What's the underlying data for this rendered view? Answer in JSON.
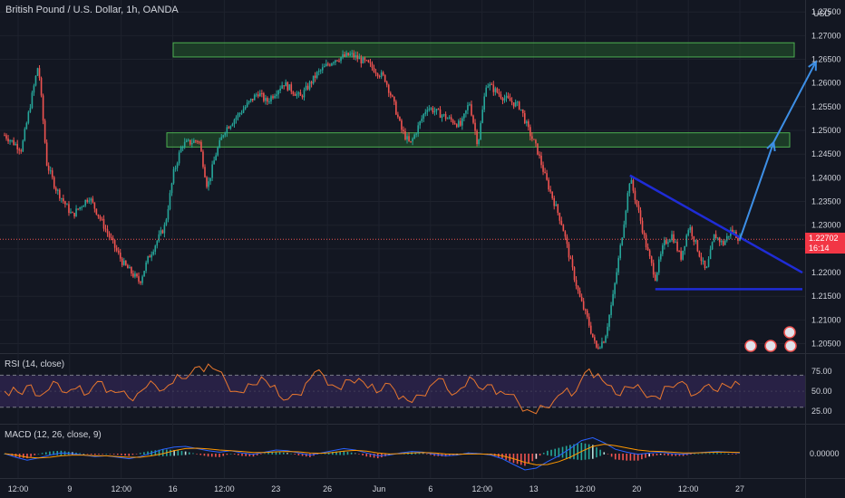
{
  "header": {
    "title": "British Pound / U.S. Dollar, 1h, OANDA",
    "currency": "USD"
  },
  "price_label": {
    "price": "1.22702",
    "countdown": "16:14"
  },
  "colors": {
    "background": "#131722",
    "up": "#26a69a",
    "down": "#ef5350",
    "zone_fill": "#2e7d32",
    "zone_border": "#4caf50",
    "trendline": "#1f2cd6",
    "arrow": "#3d8fe6",
    "rsi_line": "#e8772e",
    "rsi_band": "#3b2a63",
    "macd_line": "#2962ff",
    "signal_line": "#ff9800"
  },
  "chart_data": [
    {
      "type": "candlestick",
      "title": "British Pound / U.S. Dollar, 1h, OANDA",
      "ylim": [
        1.203,
        1.276
      ],
      "y_ticks": [
        "1.27500",
        "1.27000",
        "1.26500",
        "1.26000",
        "1.25500",
        "1.25000",
        "1.24500",
        "1.24000",
        "1.23500",
        "1.23000",
        "1.22500",
        "1.22000",
        "1.21500",
        "1.21000",
        "1.20500"
      ],
      "x_ticks": [
        "12:00",
        "9",
        "12:00",
        "16",
        "12:00",
        "23",
        "26",
        "Jun",
        "6",
        "12:00",
        "13",
        "12:00",
        "20",
        "12:00",
        "27"
      ],
      "last_price": 1.22702,
      "price_path": [
        [
          0,
          1.249
        ],
        [
          2,
          1.246
        ],
        [
          4,
          1.264
        ],
        [
          5,
          1.243
        ],
        [
          6,
          1.238
        ],
        [
          8,
          1.232
        ],
        [
          10,
          1.236
        ],
        [
          12,
          1.229
        ],
        [
          14,
          1.222
        ],
        [
          16,
          1.218
        ],
        [
          17,
          1.223
        ],
        [
          19,
          1.23
        ],
        [
          20,
          1.241
        ],
        [
          21,
          1.247
        ],
        [
          23,
          1.248
        ],
        [
          24,
          1.238
        ],
        [
          25,
          1.245
        ],
        [
          26,
          1.25
        ],
        [
          28,
          1.254
        ],
        [
          30,
          1.258
        ],
        [
          31,
          1.256
        ],
        [
          33,
          1.26
        ],
        [
          35,
          1.257
        ],
        [
          37,
          1.262
        ],
        [
          39,
          1.265
        ],
        [
          41,
          1.266
        ],
        [
          43,
          1.264
        ],
        [
          45,
          1.261
        ],
        [
          46,
          1.256
        ],
        [
          47,
          1.25
        ],
        [
          48,
          1.247
        ],
        [
          50,
          1.255
        ],
        [
          52,
          1.253
        ],
        [
          54,
          1.251
        ],
        [
          55,
          1.256
        ],
        [
          56,
          1.247
        ],
        [
          57,
          1.26
        ],
        [
          59,
          1.257
        ],
        [
          61,
          1.255
        ],
        [
          62,
          1.25
        ],
        [
          63,
          1.246
        ],
        [
          64,
          1.24
        ],
        [
          66,
          1.23
        ],
        [
          67,
          1.222
        ],
        [
          68,
          1.215
        ],
        [
          69,
          1.21
        ],
        [
          70,
          1.204
        ],
        [
          71,
          1.206
        ],
        [
          72,
          1.215
        ],
        [
          73,
          1.227
        ],
        [
          74,
          1.24
        ],
        [
          75,
          1.233
        ],
        [
          76,
          1.225
        ],
        [
          77,
          1.219
        ],
        [
          78,
          1.226
        ],
        [
          79,
          1.228
        ],
        [
          80,
          1.223
        ],
        [
          81,
          1.23
        ],
        [
          82,
          1.225
        ],
        [
          83,
          1.22
        ],
        [
          84,
          1.228
        ],
        [
          85,
          1.226
        ],
        [
          86,
          1.229
        ],
        [
          87,
          1.22702
        ]
      ],
      "zones": [
        {
          "from": 1.2655,
          "to": 1.2685
        },
        {
          "from": 1.2465,
          "to": 1.2495
        }
      ],
      "trendlines": [
        {
          "from": [
            74,
            1.2405
          ],
          "to": [
            100,
            1.22
          ]
        },
        {
          "from": [
            77,
            1.2165
          ],
          "to": [
            100,
            1.2165
          ]
        }
      ],
      "projection": [
        [
          87,
          1.22702
        ],
        [
          91,
          1.2475
        ],
        [
          96,
          1.2645
        ]
      ]
    },
    {
      "type": "line",
      "title": "RSI (14, close)",
      "ylim": [
        15,
        92
      ],
      "y_ticks": [
        "75.00",
        "50.00",
        "25.00"
      ],
      "bands": [
        30,
        70
      ],
      "values": [
        50,
        55,
        46,
        58,
        44,
        52,
        60,
        48,
        53,
        45,
        56,
        62,
        51,
        49,
        42,
        47,
        55,
        58,
        52,
        60,
        66,
        72,
        81,
        84,
        76,
        62,
        50,
        48,
        58,
        68,
        55,
        44,
        40,
        46,
        60,
        74,
        70,
        58,
        52,
        64,
        66,
        54,
        48,
        60,
        52,
        44,
        36,
        45,
        56,
        66,
        52,
        48,
        56,
        64,
        52,
        58,
        50,
        46,
        36,
        27,
        22,
        30,
        38,
        48,
        44,
        62,
        78,
        72,
        58,
        46,
        56,
        54,
        50,
        44,
        40,
        56,
        60,
        58,
        46,
        56,
        52,
        60,
        54,
        58
      ]
    },
    {
      "type": "line",
      "title": "MACD (12, 26, close, 9)",
      "y_ticks": [
        "0.00000"
      ],
      "macd": [
        0.0,
        -0.001,
        -0.0018,
        -0.0012,
        -0.0004,
        0.0002,
        0.0,
        -0.0004,
        -0.0008,
        -0.0006,
        -0.001,
        -0.0014,
        -0.0008,
        0.0002,
        0.0012,
        0.0018,
        0.002,
        0.0014,
        0.0008,
        0.0004,
        0.0008,
        0.0002,
        -0.0002,
        0.0004,
        0.001,
        0.0008,
        0.0002,
        -0.0004,
        0.0002,
        0.0008,
        0.0014,
        0.001,
        0.0002,
        -0.0006,
        -0.0004,
        0.0002,
        0.0006,
        0.0004,
        -0.0002,
        -0.0006,
        -0.0004,
        0.0002,
        0.0,
        -0.0004,
        -0.0014,
        -0.003,
        -0.0045,
        -0.004,
        -0.0022,
        -0.0006,
        0.0014,
        0.0036,
        0.0044,
        0.003,
        0.0012,
        0.0004,
        -0.0002,
        0.0002,
        0.0004,
        0.0,
        -0.0002,
        0.0002,
        0.0004,
        0.0006,
        0.0004,
        0.0002
      ],
      "signal": [
        0.0,
        -0.0004,
        -0.001,
        -0.0012,
        -0.001,
        -0.0006,
        -0.0004,
        -0.0004,
        -0.0006,
        -0.0006,
        -0.0008,
        -0.001,
        -0.001,
        -0.0006,
        0.0,
        0.0008,
        0.0014,
        0.0015,
        0.0013,
        0.001,
        0.0008,
        0.0006,
        0.0003,
        0.0003,
        0.0005,
        0.0006,
        0.0005,
        0.0002,
        0.0001,
        0.0003,
        0.0007,
        0.0009,
        0.0007,
        0.0002,
        -0.0001,
        0.0,
        0.0002,
        0.0003,
        0.0002,
        -0.0001,
        -0.0002,
        -0.0001,
        -0.0001,
        -0.0002,
        -0.0006,
        -0.0014,
        -0.0024,
        -0.0031,
        -0.003,
        -0.0022,
        -0.001,
        0.0006,
        0.002,
        0.0026,
        0.0022,
        0.0016,
        0.001,
        0.0007,
        0.0006,
        0.0004,
        0.0002,
        0.0002,
        0.0003,
        0.0004,
        0.0004,
        0.0003
      ]
    }
  ]
}
